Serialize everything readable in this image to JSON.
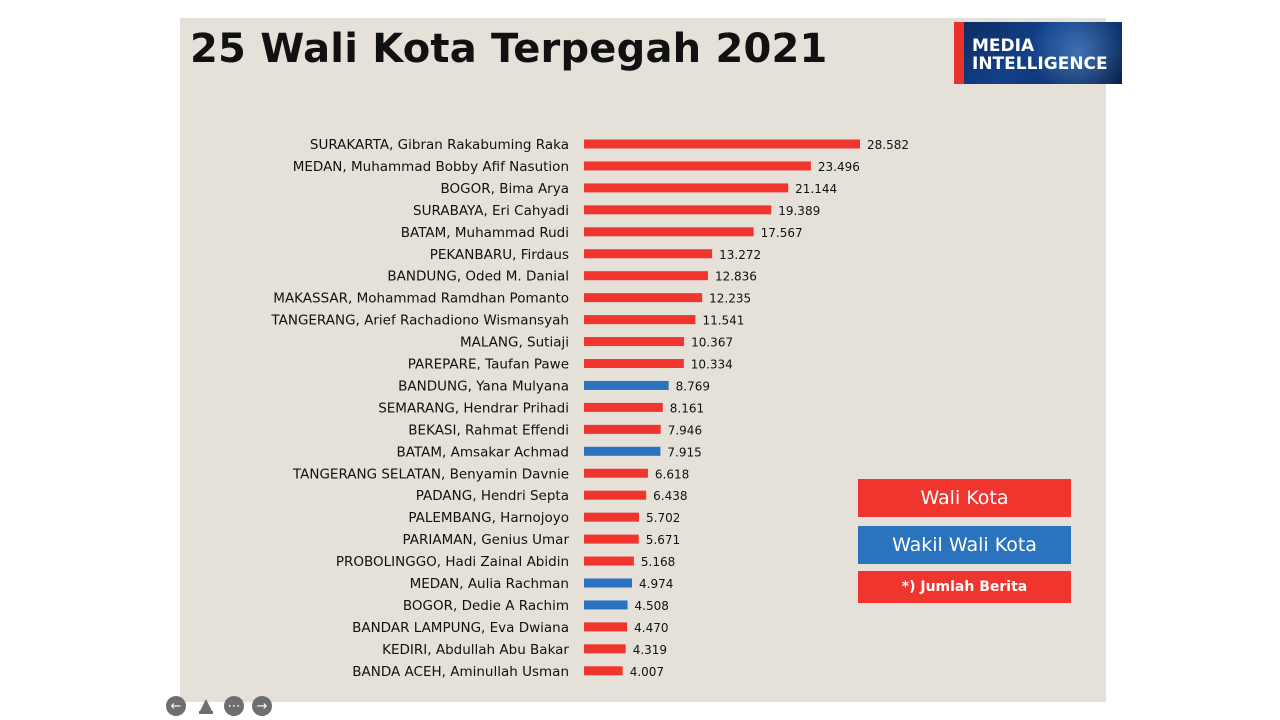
{
  "slide": {
    "title": "25 Wali Kota Terpegah 2021",
    "logo": {
      "line1": "MEDIA",
      "line2": "INTELLIGENCE"
    }
  },
  "legend": {
    "wali_kota": "Wali Kota",
    "wakil_wali_kota": "Wakil Wali Kota",
    "note": "*) Jumlah Berita"
  },
  "colors": {
    "wali_kota": "#f0342e",
    "wakil_wali_kota": "#2a73bf"
  },
  "controls": {
    "prev_icon": "arrow-left-icon",
    "pointer_icon": "pointer-icon",
    "more_icon": "more-icon",
    "next_icon": "arrow-right-icon"
  },
  "chart_data": {
    "type": "bar",
    "orientation": "horizontal",
    "title": "25 Wali Kota Terpegah 2021",
    "categories": [
      "SURAKARTA, Gibran Rakabuming Raka",
      "MEDAN, Muhammad Bobby Afif Nasution",
      "BOGOR, Bima Arya",
      "SURABAYA, Eri Cahyadi",
      "BATAM, Muhammad Rudi",
      "PEKANBARU, Firdaus",
      "BANDUNG, Oded M. Danial",
      "MAKASSAR, Mohammad Ramdhan Pomanto",
      "TANGERANG, Arief Rachadiono Wismansyah",
      "MALANG, Sutiaji",
      "PAREPARE, Taufan Pawe",
      "BANDUNG, Yana Mulyana",
      "SEMARANG, Hendrar Prihadi",
      "BEKASI, Rahmat Effendi",
      "BATAM, Amsakar Achmad",
      "TANGERANG SELATAN, Benyamin Davnie",
      "PADANG, Hendri Septa",
      "PALEMBANG, Harnojoyo",
      "PARIAMAN, Genius Umar",
      "PROBOLINGGO, Hadi Zainal Abidin",
      "MEDAN, Aulia Rachman",
      "BOGOR, Dedie A Rachim",
      "BANDAR LAMPUNG, Eva Dwiana",
      "KEDIRI, Abdullah Abu Bakar",
      "BANDA ACEH, Aminullah Usman"
    ],
    "values": [
      28582,
      23496,
      21144,
      19389,
      17567,
      13272,
      12836,
      12235,
      11541,
      10367,
      10334,
      8769,
      8161,
      7946,
      7915,
      6618,
      6438,
      5702,
      5671,
      5168,
      4974,
      4508,
      4470,
      4319,
      4007
    ],
    "value_labels": [
      "28.582",
      "23.496",
      "21.144",
      "19.389",
      "17.567",
      "13.272",
      "12.836",
      "12.235",
      "11.541",
      "10.367",
      "10.334",
      "8.769",
      "8.161",
      "7.946",
      "7.915",
      "6.618",
      "6.438",
      "5.702",
      "5.671",
      "5.168",
      "4.974",
      "4.508",
      "4.470",
      "4.319",
      "4.007"
    ],
    "group": [
      "Wali Kota",
      "Wali Kota",
      "Wali Kota",
      "Wali Kota",
      "Wali Kota",
      "Wali Kota",
      "Wali Kota",
      "Wali Kota",
      "Wali Kota",
      "Wali Kota",
      "Wali Kota",
      "Wakil Wali Kota",
      "Wali Kota",
      "Wali Kota",
      "Wakil Wali Kota",
      "Wali Kota",
      "Wali Kota",
      "Wali Kota",
      "Wali Kota",
      "Wali Kota",
      "Wakil Wali Kota",
      "Wakil Wali Kota",
      "Wali Kota",
      "Wali Kota",
      "Wali Kota"
    ],
    "legend": [
      "Wali Kota",
      "Wakil Wali Kota"
    ],
    "xlabel": "",
    "ylabel": "",
    "xlim": [
      0,
      28582
    ],
    "grid": false,
    "legend_position": "bottom-right"
  }
}
